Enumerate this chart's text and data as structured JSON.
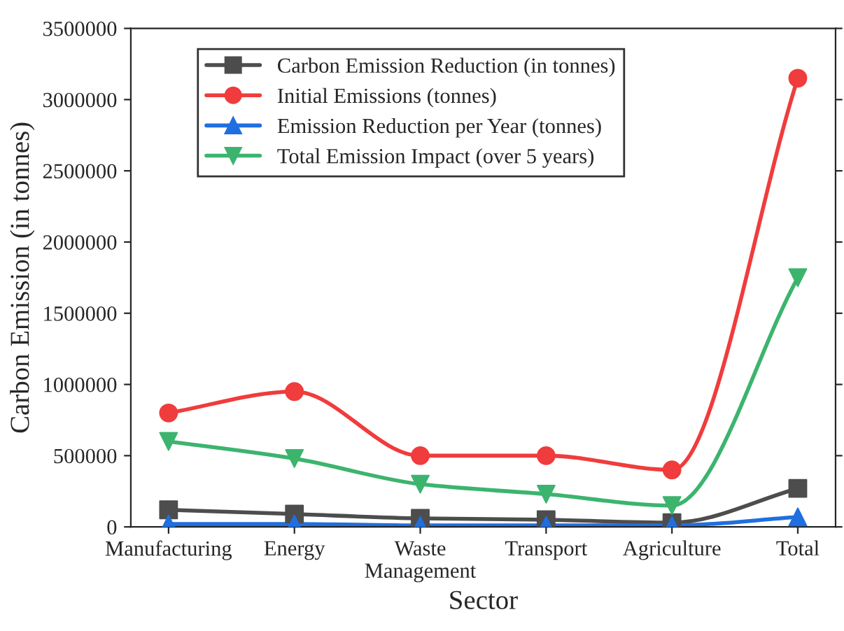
{
  "chart_data": {
    "type": "line",
    "xlabel": "Sector",
    "ylabel": "Carbon Emission (in tonnes)",
    "categories": [
      "Manufacturing",
      "Energy",
      "Waste\nManagement",
      "Transport",
      "Agriculture",
      "Total"
    ],
    "series": [
      {
        "name": "Carbon Emission Reduction (in tonnes)",
        "color": "#4d4d4d",
        "marker": "square",
        "values": [
          120000,
          90000,
          60000,
          50000,
          30000,
          270000
        ]
      },
      {
        "name": "Initial Emissions (tonnes)",
        "color": "#f03c3c",
        "marker": "circle",
        "values": [
          800000,
          950000,
          500000,
          500000,
          400000,
          3150000
        ]
      },
      {
        "name": "Emission Reduction per Year (tonnes)",
        "color": "#1f6fe0",
        "marker": "triangle",
        "values": [
          20000,
          20000,
          10000,
          10000,
          10000,
          70000
        ]
      },
      {
        "name": "Total Emission Impact (over 5 years)",
        "color": "#3cb46e",
        "marker": "triangle_down",
        "values": [
          600000,
          480000,
          300000,
          230000,
          150000,
          1750000
        ]
      }
    ],
    "ylim": [
      0,
      3500000
    ],
    "yticks": [
      0,
      500000,
      1000000,
      1500000,
      2000000,
      2500000,
      3000000,
      3500000
    ],
    "legend": "top left",
    "grid": false
  }
}
